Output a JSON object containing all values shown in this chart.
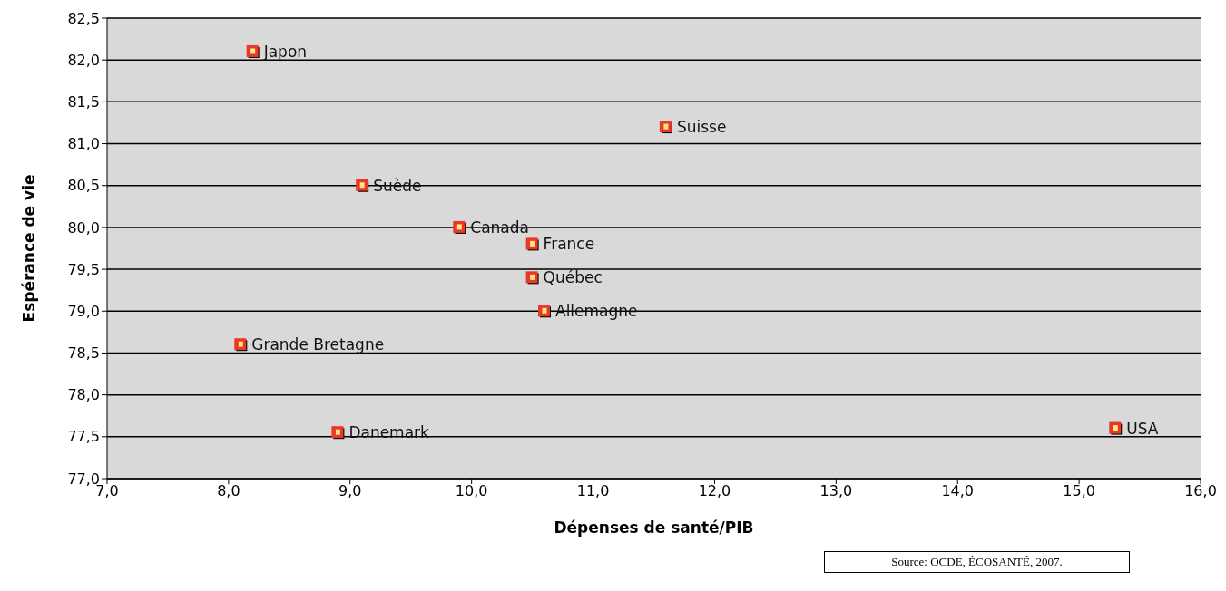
{
  "chart_data": {
    "type": "scatter",
    "xlabel": "Dépenses de santé/PIB",
    "ylabel": "Espérance de vie",
    "x": [
      8.2,
      11.6,
      9.1,
      9.9,
      10.5,
      10.5,
      10.6,
      8.1,
      8.9,
      15.3
    ],
    "values": [
      82.1,
      81.2,
      80.5,
      80.0,
      79.8,
      79.4,
      79.0,
      78.6,
      77.55,
      77.6
    ],
    "color": "#e8382a",
    "marker": "square",
    "grid": "y",
    "legend": false,
    "xlim": [
      7,
      16
    ],
    "xticks": [
      {
        "value": 7,
        "label": "7,0"
      },
      {
        "value": 8,
        "label": "8,0"
      },
      {
        "value": 9,
        "label": "9,0"
      },
      {
        "value": 10,
        "label": "10,0"
      },
      {
        "value": 11,
        "label": "11,0"
      },
      {
        "value": 12,
        "label": "12,0"
      },
      {
        "value": 13,
        "label": "13,0"
      },
      {
        "value": 14,
        "label": "14,0"
      },
      {
        "value": 15,
        "label": "15,0"
      },
      {
        "value": 16,
        "label": "16,0"
      }
    ],
    "ylim": [
      77,
      82.5
    ],
    "yticks": [
      {
        "value": 77,
        "label": "77,0"
      },
      {
        "value": 77.5,
        "label": "77,5"
      },
      {
        "value": 78,
        "label": "78,0"
      },
      {
        "value": 78.5,
        "label": "78,5"
      },
      {
        "value": 79,
        "label": "79,0"
      },
      {
        "value": 79.5,
        "label": "79,5"
      },
      {
        "value": 80,
        "label": "80,0"
      },
      {
        "value": 80.5,
        "label": "80,5"
      },
      {
        "value": 81,
        "label": "81,0"
      },
      {
        "value": 81.5,
        "label": "81,5"
      },
      {
        "value": 82,
        "label": "82,0"
      },
      {
        "value": 82.5,
        "label": "82,5"
      }
    ],
    "annotations": [
      {
        "text": "Japon",
        "x": 8.2,
        "y": 82.1
      },
      {
        "text": "Suisse",
        "x": 11.6,
        "y": 81.2
      },
      {
        "text": "Suède",
        "x": 9.1,
        "y": 80.5
      },
      {
        "text": "Canada",
        "x": 9.9,
        "y": 80.0
      },
      {
        "text": "France",
        "x": 10.5,
        "y": 79.8
      },
      {
        "text": "Québec",
        "x": 10.5,
        "y": 79.4
      },
      {
        "text": "Allemagne",
        "x": 10.6,
        "y": 79.0
      },
      {
        "text": "Grande Bretagne",
        "x": 8.1,
        "y": 78.6
      },
      {
        "text": "Danemark",
        "x": 8.9,
        "y": 77.55
      },
      {
        "text": "USA",
        "x": 15.3,
        "y": 77.6
      },
      "Source: OCDE, ÉCOSANTÉ, 2007."
    ]
  }
}
